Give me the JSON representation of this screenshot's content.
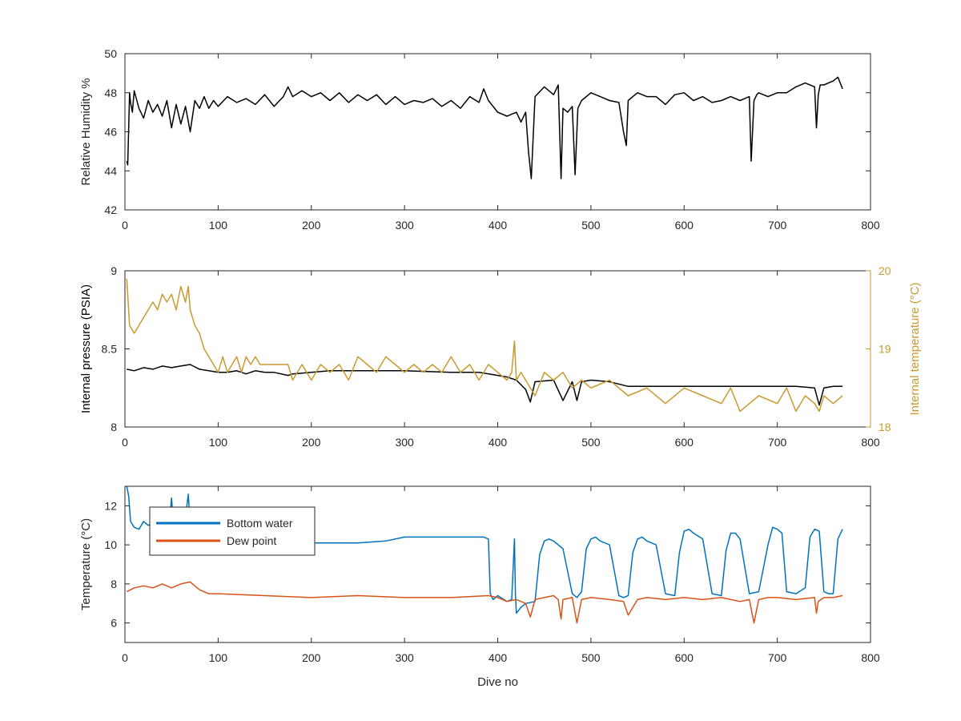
{
  "figure": {
    "xlabel": "Dive no"
  },
  "colors": {
    "humidity": "#000000",
    "pressure": "#000000",
    "internal_temp": "#c99a2e",
    "bottom_water": "#0072bd",
    "dew_point": "#d95319",
    "axis": "#262626"
  },
  "chart_data": [
    {
      "type": "line",
      "xlim": [
        0,
        800
      ],
      "ylim": [
        42,
        50
      ],
      "xticks": [
        0,
        100,
        200,
        300,
        400,
        500,
        600,
        700,
        800
      ],
      "yticks": [
        42,
        44,
        46,
        48,
        50
      ],
      "ylabel": "Relative Humidity %",
      "grid": false,
      "series": [
        {
          "color": "#000000",
          "x": [
            2,
            3,
            5,
            6,
            8,
            10,
            15,
            20,
            25,
            30,
            35,
            40,
            45,
            50,
            55,
            60,
            65,
            70,
            75,
            80,
            85,
            90,
            95,
            100,
            110,
            120,
            130,
            140,
            150,
            160,
            170,
            175,
            180,
            190,
            200,
            210,
            220,
            230,
            240,
            250,
            260,
            270,
            280,
            290,
            300,
            310,
            320,
            330,
            340,
            350,
            360,
            370,
            380,
            385,
            390,
            400,
            410,
            420,
            425,
            430,
            433,
            436,
            440,
            450,
            460,
            465,
            468,
            470,
            475,
            480,
            483,
            486,
            490,
            500,
            510,
            520,
            530,
            535,
            538,
            540,
            545,
            550,
            560,
            570,
            580,
            590,
            600,
            610,
            620,
            630,
            640,
            650,
            660,
            670,
            672,
            675,
            678,
            680,
            690,
            700,
            710,
            720,
            730,
            740,
            742,
            744,
            746,
            750,
            760,
            765,
            770
          ],
          "y": [
            44.5,
            44.3,
            48.0,
            47.5,
            47.0,
            48.1,
            47.2,
            46.7,
            47.6,
            47.0,
            47.4,
            46.8,
            47.6,
            46.2,
            47.4,
            46.4,
            47.3,
            46.0,
            47.6,
            47.2,
            47.8,
            47.2,
            47.6,
            47.3,
            47.8,
            47.5,
            47.7,
            47.4,
            47.9,
            47.3,
            47.8,
            48.3,
            47.8,
            48.1,
            47.8,
            48.0,
            47.6,
            48.0,
            47.5,
            47.9,
            47.6,
            47.9,
            47.4,
            47.8,
            47.4,
            47.6,
            47.5,
            47.7,
            47.3,
            47.6,
            47.2,
            47.8,
            47.5,
            48.2,
            47.6,
            47.0,
            46.8,
            47.0,
            46.5,
            47.0,
            45.0,
            43.6,
            47.8,
            48.3,
            47.9,
            48.4,
            43.6,
            47.2,
            47.0,
            47.3,
            43.8,
            47.2,
            47.6,
            48.0,
            47.8,
            47.6,
            47.5,
            46.0,
            45.3,
            47.6,
            47.8,
            48.0,
            47.8,
            47.8,
            47.4,
            47.9,
            48.0,
            47.6,
            47.8,
            47.5,
            47.6,
            47.8,
            47.6,
            47.8,
            44.5,
            47.6,
            47.9,
            48.0,
            47.8,
            48.0,
            48.0,
            48.3,
            48.5,
            48.3,
            46.2,
            47.9,
            48.4,
            48.4,
            48.6,
            48.8,
            48.2
          ]
        }
      ]
    },
    {
      "type": "line",
      "xlim": [
        0,
        800
      ],
      "ylim": [
        8,
        9
      ],
      "xticks": [
        0,
        100,
        200,
        300,
        400,
        500,
        600,
        700,
        800
      ],
      "yticks": [
        8,
        8.5,
        9
      ],
      "ylabel": "Internal pressure (PSIA)",
      "y2lim": [
        18,
        20
      ],
      "y2ticks": [
        18,
        19,
        20
      ],
      "y2label": "Internal temperature (°C)",
      "grid": false,
      "series": [
        {
          "axis": "left",
          "color": "#000000",
          "x": [
            2,
            10,
            20,
            30,
            40,
            50,
            60,
            70,
            80,
            90,
            100,
            110,
            120,
            130,
            140,
            150,
            160,
            175,
            180,
            200,
            220,
            250,
            300,
            350,
            380,
            400,
            410,
            420,
            430,
            435,
            440,
            460,
            470,
            480,
            485,
            490,
            500,
            520,
            540,
            560,
            600,
            640,
            680,
            700,
            720,
            740,
            745,
            750,
            760,
            770
          ],
          "y": [
            8.37,
            8.36,
            8.38,
            8.37,
            8.39,
            8.38,
            8.39,
            8.4,
            8.37,
            8.36,
            8.35,
            8.35,
            8.36,
            8.34,
            8.36,
            8.35,
            8.35,
            8.33,
            8.34,
            8.35,
            8.36,
            8.36,
            8.36,
            8.35,
            8.35,
            8.33,
            8.32,
            8.3,
            8.24,
            8.16,
            8.29,
            8.3,
            8.17,
            8.29,
            8.17,
            8.29,
            8.3,
            8.29,
            8.26,
            8.26,
            8.26,
            8.26,
            8.26,
            8.26,
            8.26,
            8.25,
            8.14,
            8.25,
            8.26,
            8.26
          ]
        },
        {
          "axis": "right",
          "color": "#c99a2e",
          "x": [
            2,
            5,
            10,
            15,
            20,
            25,
            30,
            35,
            40,
            45,
            50,
            55,
            60,
            65,
            68,
            70,
            75,
            80,
            85,
            90,
            95,
            100,
            105,
            110,
            115,
            120,
            125,
            130,
            135,
            140,
            145,
            150,
            160,
            170,
            175,
            180,
            190,
            200,
            210,
            220,
            230,
            240,
            250,
            260,
            270,
            280,
            290,
            300,
            310,
            320,
            330,
            340,
            350,
            360,
            370,
            380,
            390,
            400,
            410,
            415,
            418,
            420,
            425,
            430,
            440,
            450,
            460,
            470,
            480,
            490,
            500,
            520,
            540,
            560,
            580,
            600,
            620,
            640,
            650,
            660,
            680,
            700,
            710,
            720,
            730,
            740,
            745,
            750,
            760,
            770
          ],
          "y": [
            19.9,
            19.3,
            19.2,
            19.3,
            19.4,
            19.5,
            19.6,
            19.5,
            19.7,
            19.6,
            19.7,
            19.5,
            19.8,
            19.6,
            19.8,
            19.5,
            19.3,
            19.2,
            19.0,
            18.9,
            18.8,
            18.7,
            18.9,
            18.7,
            18.8,
            18.9,
            18.7,
            18.9,
            18.8,
            18.9,
            18.8,
            18.8,
            18.8,
            18.8,
            18.8,
            18.6,
            18.8,
            18.6,
            18.8,
            18.7,
            18.8,
            18.6,
            18.9,
            18.8,
            18.7,
            18.9,
            18.8,
            18.7,
            18.8,
            18.7,
            18.8,
            18.7,
            18.9,
            18.7,
            18.8,
            18.6,
            18.8,
            18.7,
            18.6,
            18.7,
            19.1,
            18.6,
            18.7,
            18.6,
            18.4,
            18.7,
            18.6,
            18.7,
            18.5,
            18.6,
            18.5,
            18.6,
            18.4,
            18.5,
            18.3,
            18.5,
            18.4,
            18.3,
            18.5,
            18.2,
            18.4,
            18.3,
            18.5,
            18.2,
            18.4,
            18.3,
            18.2,
            18.4,
            18.3,
            18.4
          ]
        }
      ]
    },
    {
      "type": "line",
      "xlim": [
        0,
        800
      ],
      "ylim": [
        5,
        13
      ],
      "xticks": [
        0,
        100,
        200,
        300,
        400,
        500,
        600,
        700,
        800
      ],
      "yticks": [
        6,
        8,
        10,
        12
      ],
      "ylabel": "Temperature (°C)",
      "xlabel": "Dive no",
      "grid": false,
      "legend": "top-left",
      "series": [
        {
          "name": "Bottom water",
          "color": "#0072bd",
          "x": [
            2,
            4,
            6,
            10,
            15,
            20,
            25,
            30,
            40,
            48,
            50,
            52,
            55,
            60,
            65,
            68,
            70,
            72,
            75,
            80,
            90,
            100,
            150,
            200,
            250,
            280,
            300,
            330,
            360,
            385,
            390,
            392,
            395,
            400,
            410,
            415,
            418,
            419,
            420,
            425,
            430,
            440,
            445,
            450,
            455,
            460,
            470,
            480,
            485,
            490,
            495,
            500,
            505,
            510,
            520,
            530,
            535,
            540,
            545,
            550,
            555,
            560,
            570,
            580,
            590,
            595,
            600,
            605,
            610,
            620,
            630,
            640,
            645,
            650,
            655,
            660,
            670,
            680,
            690,
            695,
            700,
            705,
            710,
            720,
            730,
            735,
            740,
            745,
            750,
            755,
            760,
            765,
            770
          ],
          "y": [
            13.0,
            12.5,
            11.2,
            10.9,
            10.8,
            11.2,
            11.0,
            11.1,
            11.2,
            11.3,
            12.4,
            11.1,
            11.0,
            11.2,
            11.4,
            12.6,
            11.0,
            10.9,
            10.6,
            10.4,
            10.3,
            10.2,
            10.1,
            10.1,
            10.1,
            10.2,
            10.4,
            10.4,
            10.4,
            10.4,
            10.3,
            7.5,
            7.2,
            7.4,
            7.1,
            7.2,
            10.3,
            7.5,
            6.5,
            6.8,
            7.0,
            7.1,
            9.5,
            10.2,
            10.3,
            10.2,
            9.8,
            7.5,
            7.3,
            7.6,
            9.8,
            10.3,
            10.4,
            10.2,
            10.0,
            7.4,
            7.3,
            7.4,
            9.6,
            10.3,
            10.4,
            10.2,
            10.0,
            7.5,
            7.4,
            9.6,
            10.7,
            10.8,
            10.6,
            10.3,
            7.5,
            7.4,
            9.7,
            10.6,
            10.6,
            10.3,
            7.5,
            7.6,
            10.0,
            10.9,
            10.8,
            10.6,
            7.6,
            7.5,
            7.8,
            10.4,
            10.8,
            10.7,
            7.6,
            7.5,
            7.5,
            10.3,
            10.8
          ]
        },
        {
          "name": "Dew point",
          "color": "#d95319",
          "x": [
            2,
            10,
            20,
            30,
            40,
            50,
            60,
            70,
            80,
            90,
            100,
            150,
            200,
            250,
            300,
            350,
            390,
            400,
            410,
            420,
            430,
            435,
            440,
            450,
            460,
            465,
            468,
            470,
            480,
            485,
            490,
            500,
            520,
            535,
            540,
            550,
            560,
            580,
            600,
            620,
            640,
            650,
            660,
            670,
            675,
            680,
            690,
            700,
            720,
            740,
            742,
            744,
            750,
            760,
            770
          ],
          "y": [
            7.6,
            7.8,
            7.9,
            7.8,
            8.0,
            7.8,
            8.0,
            8.1,
            7.7,
            7.5,
            7.5,
            7.4,
            7.3,
            7.4,
            7.3,
            7.3,
            7.4,
            7.3,
            7.1,
            7.2,
            7.0,
            6.3,
            7.2,
            7.3,
            7.4,
            7.2,
            6.2,
            7.2,
            7.3,
            6.0,
            7.2,
            7.3,
            7.2,
            7.1,
            6.4,
            7.2,
            7.3,
            7.2,
            7.3,
            7.2,
            7.3,
            7.2,
            7.1,
            7.2,
            6.0,
            7.2,
            7.3,
            7.3,
            7.2,
            7.3,
            6.5,
            7.1,
            7.3,
            7.3,
            7.4
          ]
        }
      ]
    }
  ]
}
